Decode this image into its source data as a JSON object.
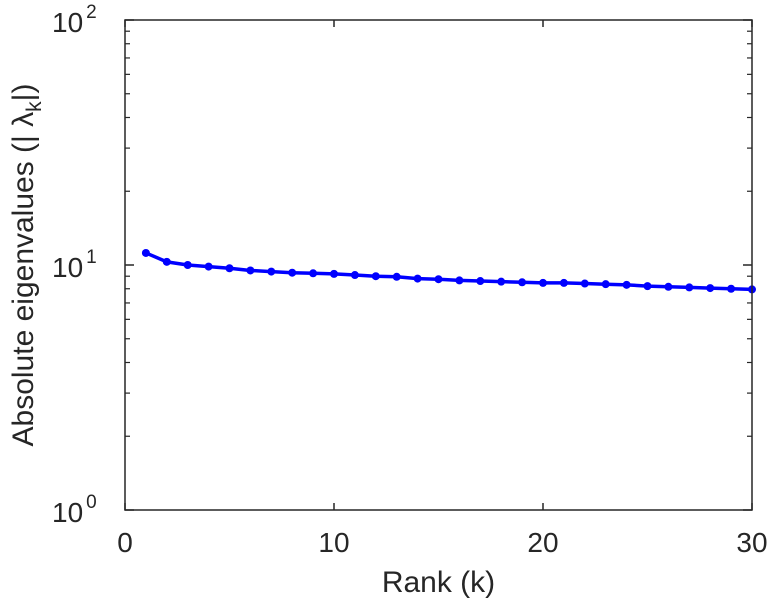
{
  "chart_data": {
    "type": "line",
    "xlabel": "Rank (k)",
    "ylabel": "Absolute eigenvalues (|     λ",
    "ylabel_sub": "k",
    "ylabel_close": "|)",
    "xlim": [
      0,
      30
    ],
    "ylim": [
      1,
      100
    ],
    "yscale": "log",
    "grid": false,
    "x_ticks": [
      0,
      10,
      20,
      30
    ],
    "x_tick_labels": [
      "0",
      "10",
      "20",
      "30"
    ],
    "y_ticks": [
      1,
      10,
      100
    ],
    "y_tick_bases": [
      "10",
      "10",
      "10"
    ],
    "y_tick_exponents": [
      "0",
      "1",
      "2"
    ],
    "series": [
      {
        "color": "#0000ff",
        "marker": "circle",
        "x": [
          1,
          2,
          3,
          4,
          5,
          6,
          7,
          8,
          9,
          10,
          11,
          12,
          13,
          14,
          15,
          16,
          17,
          18,
          19,
          20,
          21,
          22,
          23,
          24,
          25,
          26,
          27,
          28,
          29,
          30
        ],
        "y": [
          11.2,
          10.3,
          10.0,
          9.85,
          9.7,
          9.5,
          9.4,
          9.3,
          9.25,
          9.2,
          9.1,
          9.0,
          8.95,
          8.8,
          8.75,
          8.65,
          8.6,
          8.55,
          8.5,
          8.45,
          8.45,
          8.4,
          8.35,
          8.3,
          8.2,
          8.15,
          8.1,
          8.05,
          8.0,
          7.95
        ]
      }
    ]
  }
}
